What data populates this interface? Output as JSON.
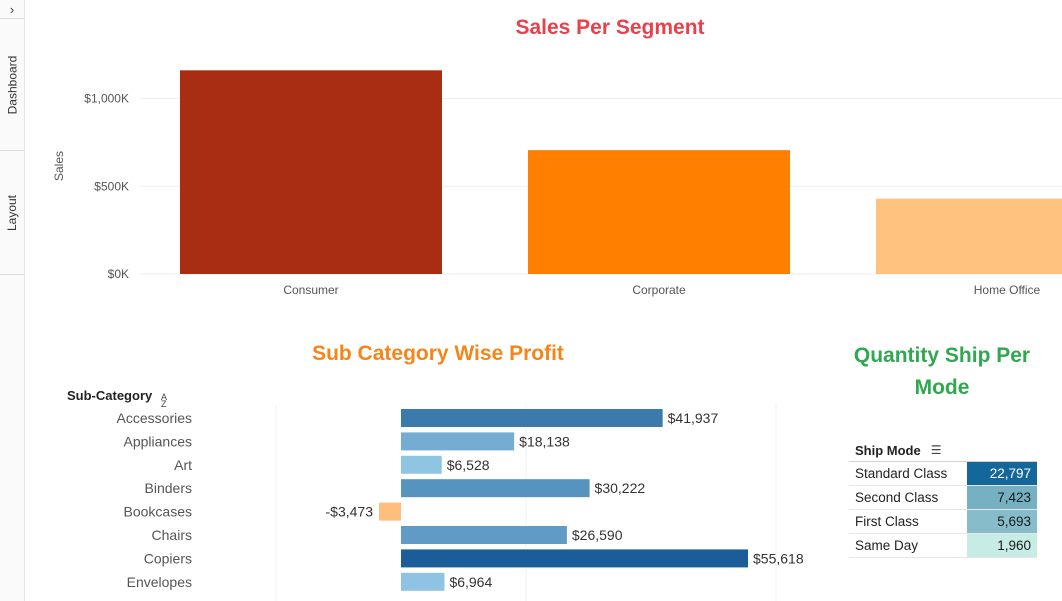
{
  "sidebar": {
    "toggle_icon": "chevron-right-icon",
    "tabs": [
      {
        "label": "Dashboard"
      },
      {
        "label": "Layout"
      }
    ]
  },
  "colors": {
    "sales_title": "#e8414c",
    "profit_title": "#f58518",
    "quantity_title": "#2fa84f",
    "segment_bars": [
      "#a82d12",
      "#ff7f00",
      "#ffc27f"
    ],
    "negative_bar": "#ffbe7d",
    "blue_scale": [
      "#9fd3ec",
      "#1a5d99"
    ],
    "teal_scale": [
      "#c6ece5",
      "#14679a"
    ]
  },
  "chart_data": [
    {
      "type": "bar",
      "title": "Sales Per Segment",
      "xlabel": "",
      "ylabel": "Sales",
      "categories": [
        "Consumer",
        "Corporate",
        "Home Office"
      ],
      "values": [
        1161401,
        706146,
        429653
      ],
      "yticks": [
        0,
        500000,
        1000000
      ],
      "ytick_labels": [
        "$0K",
        "$500K",
        "$1,000K"
      ],
      "ylim": [
        0,
        1300000
      ],
      "grid": true
    },
    {
      "type": "bar",
      "orientation": "horizontal",
      "title": "Sub Category Wise Profit",
      "header": "Sub-Category",
      "categories": [
        "Accessories",
        "Appliances",
        "Art",
        "Binders",
        "Bookcases",
        "Chairs",
        "Copiers",
        "Envelopes"
      ],
      "values": [
        41937,
        18138,
        6528,
        30222,
        -3473,
        26590,
        55618,
        6964
      ],
      "value_labels": [
        "$41,937",
        "$18,138",
        "$6,528",
        "$30,222",
        "-$3,473",
        "$26,590",
        "$55,618",
        "$6,964"
      ],
      "ylim": [
        -10000,
        60000
      ]
    },
    {
      "type": "table",
      "title": "Quantity Ship Per Mode",
      "header": "Ship Mode",
      "rows": [
        {
          "label": "Standard Class",
          "value": 22797,
          "display": "22,797"
        },
        {
          "label": "Second Class",
          "value": 7423,
          "display": "7,423"
        },
        {
          "label": "First Class",
          "value": 5693,
          "display": "5,693"
        },
        {
          "label": "Same Day",
          "value": 1960,
          "display": "1,960"
        }
      ]
    }
  ]
}
